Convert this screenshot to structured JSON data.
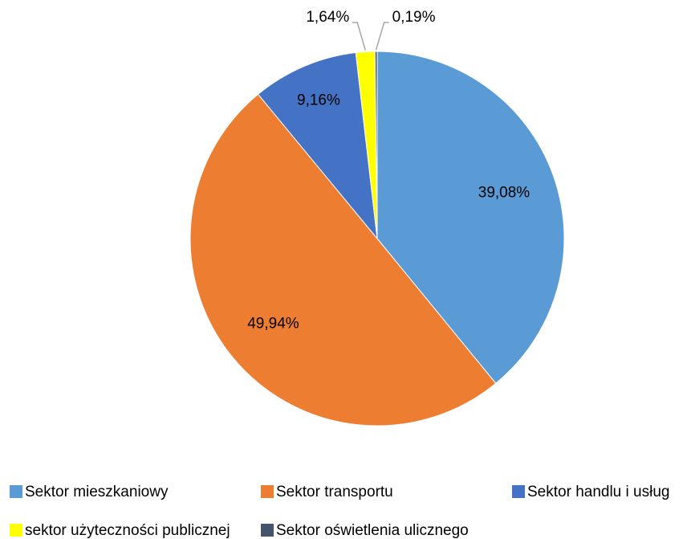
{
  "chart_data": {
    "type": "pie",
    "categories": [
      "Sektor mieszkaniowy",
      "Sektor transportu",
      "Sektor handlu i usług",
      "sektor użyteczności publicznej",
      "Sektor oświetlenia ulicznego"
    ],
    "values": [
      39.08,
      49.94,
      9.16,
      1.64,
      0.19
    ],
    "value_labels": [
      "39,08%",
      "49,94%",
      "9,16%",
      "1,64%",
      "0,19%"
    ],
    "colors": [
      "#5b9bd5",
      "#ed7d31",
      "#4472c4",
      "#ffff00",
      "#44546a"
    ],
    "legend": "bottom"
  }
}
